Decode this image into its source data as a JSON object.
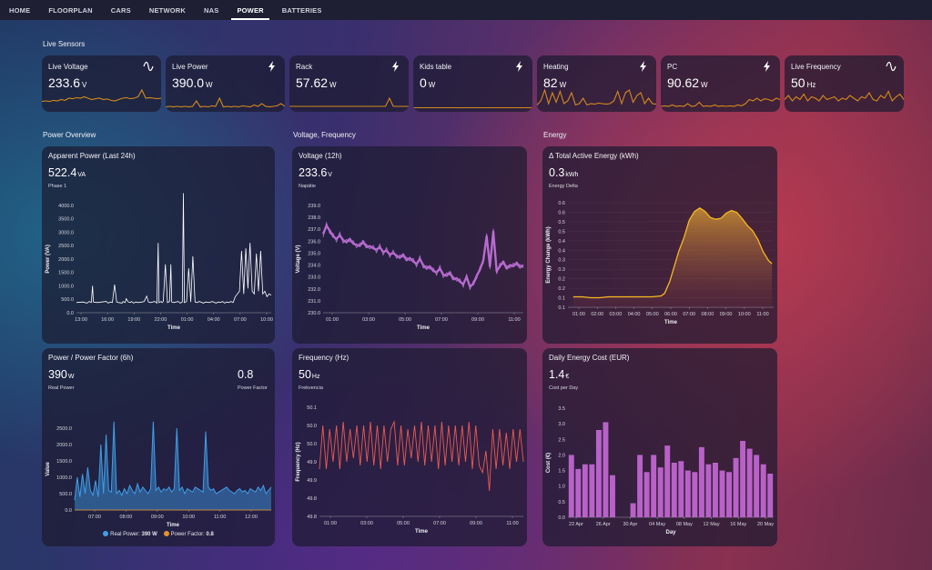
{
  "nav": {
    "tabs": [
      "HOME",
      "FLOORPLAN",
      "CARS",
      "NETWORK",
      "NAS",
      "POWER",
      "BATTERIES"
    ],
    "active": 5
  },
  "sections": {
    "live": "Live Sensors",
    "power": "Power Overview",
    "voltage": "Voltage, Frequency",
    "energy": "Energy"
  },
  "sensors": [
    {
      "name": "Live Voltage",
      "value": "233.6",
      "unit": "V",
      "icon": "sine-wave-icon"
    },
    {
      "name": "Live Power",
      "value": "390.0",
      "unit": "W",
      "icon": "lightning-bolt-icon"
    },
    {
      "name": "Rack",
      "value": "57.62",
      "unit": "W",
      "icon": "lightning-bolt-icon"
    },
    {
      "name": "Kids table",
      "value": "0",
      "unit": "W",
      "icon": "lightning-bolt-icon"
    },
    {
      "name": "Heating",
      "value": "82",
      "unit": "W",
      "icon": "lightning-bolt-icon"
    },
    {
      "name": "PC",
      "value": "90.62",
      "unit": "W",
      "icon": "lightning-bolt-icon"
    },
    {
      "name": "Live Frequency",
      "value": "50",
      "unit": "Hz",
      "icon": "sine-wave-icon"
    }
  ],
  "colors": {
    "spark": "#d4891c",
    "white_series": "#ffffff",
    "purple": "#c070d8",
    "red": "#ef5a50",
    "yellow": "#f5b820",
    "blue": "#3f9ee8",
    "bars": "#b862c8",
    "orange": "#e8902a"
  },
  "cards": {
    "apparent": {
      "title": "Apparent Power (Last 24h)",
      "value": "522.4",
      "unit": "VA",
      "sub": "Phase 1"
    },
    "voltage": {
      "title": "Voltage (12h)",
      "value": "233.6",
      "unit": "V",
      "sub": "Napätie"
    },
    "energy": {
      "title": "Δ Total Active Energy (kWh)",
      "value": "0.3",
      "unit": "kWh",
      "sub": "Energy Delta"
    },
    "pf": {
      "title": "Power / Power Factor (6h)",
      "value": "390",
      "unit": "W",
      "sub": "Real Power",
      "value2": "0.8",
      "sub2": "Power Factor",
      "legend": [
        {
          "label": "Real Power:",
          "value": "390 W"
        },
        {
          "label": "Power Factor:",
          "value": "0.8"
        }
      ]
    },
    "freq": {
      "title": "Frequency (Hz)",
      "value": "50",
      "unit": "Hz",
      "sub": "Frekvencia"
    },
    "cost": {
      "title": "Daily Energy Cost (EUR)",
      "value": "1.4",
      "unit": "€",
      "sub": "Cost per Day"
    }
  },
  "chart_data": [
    {
      "id": "apparent",
      "type": "line",
      "ylabel": "Power (VA)",
      "xlabel": "Time",
      "ylim": [
        0,
        4500
      ],
      "yticks": [
        "0.0",
        "500.0",
        "1000.0",
        "1500.0",
        "2000.0",
        "2500.0",
        "3000.0",
        "3500.0",
        "4000.0"
      ],
      "xticks": [
        "13:00",
        "16:00",
        "19:00",
        "22:00",
        "01:00",
        "04:00",
        "07:00",
        "10:00"
      ],
      "series": [
        {
          "x": [
            0,
            3,
            5,
            6,
            7,
            7.6,
            8,
            10,
            14,
            15,
            16,
            17,
            18,
            19,
            20,
            21.5,
            22,
            23,
            23.5,
            24.5,
            25.5,
            26,
            27,
            28,
            29,
            31,
            32,
            33.2,
            34,
            35,
            37,
            38,
            38.6,
            39,
            40,
            40.5,
            41,
            42,
            43,
            44,
            44.6,
            45,
            46,
            48,
            49,
            50,
            50.5,
            51,
            52,
            53,
            54,
            55,
            56,
            57,
            58,
            60,
            61,
            63,
            64,
            66,
            67,
            68,
            69,
            70,
            71,
            72,
            73,
            74,
            75,
            77,
            78,
            79,
            80,
            81,
            82,
            83,
            84,
            85,
            86,
            87,
            88,
            89,
            90,
            91,
            92
          ],
          "y": [
            380,
            400,
            360,
            420,
            380,
            1000,
            400,
            380,
            420,
            360,
            400,
            380,
            1050,
            400,
            380,
            360,
            420,
            380,
            520,
            400,
            380,
            420,
            360,
            400,
            380,
            400,
            420,
            620,
            400,
            380,
            420,
            360,
            2600,
            380,
            420,
            380,
            420,
            1800,
            380,
            420,
            1800,
            400,
            380,
            420,
            360,
            400,
            4450,
            380,
            420,
            1650,
            400,
            2100,
            400,
            380,
            420,
            360,
            400,
            380,
            420,
            360,
            400,
            380,
            420,
            360,
            400,
            380,
            420,
            380,
            600,
            800,
            2300,
            700,
            2400,
            900,
            2600,
            800,
            700,
            2200,
            800,
            2300,
            700,
            800,
            600,
            700,
            650
          ]
        }
      ]
    },
    {
      "id": "voltage",
      "type": "line",
      "ylabel": "Voltage (V)",
      "xlabel": "Time",
      "ylim": [
        230,
        239
      ],
      "yticks": [
        "230.0",
        "231.0",
        "232.0",
        "233.0",
        "234.0",
        "235.0",
        "236.0",
        "237.0",
        "238.0",
        "239.0"
      ],
      "xticks": [
        "01:00",
        "03:00",
        "05:00",
        "07:00",
        "09:00",
        "11:00"
      ],
      "series": [
        {
          "x": [
            0,
            1,
            2,
            3,
            4,
            5,
            6,
            7,
            8,
            9,
            10,
            11,
            12,
            13,
            14,
            15,
            16,
            17,
            18,
            19,
            20,
            21,
            22,
            23,
            24,
            25,
            26,
            27,
            28,
            29,
            30,
            31,
            32,
            33,
            34,
            35,
            36,
            37,
            38,
            39,
            40,
            41,
            42,
            43,
            44,
            45,
            46,
            47,
            48,
            49,
            50,
            51,
            52,
            53,
            54,
            55,
            56,
            57,
            58,
            59,
            60
          ],
          "y": [
            236.6,
            237.3,
            236.9,
            236.4,
            236.2,
            236.5,
            236.1,
            235.9,
            236.2,
            235.8,
            235.7,
            235.6,
            236.0,
            235.5,
            235.6,
            235.4,
            235.3,
            235.5,
            235.1,
            235.2,
            234.9,
            235.0,
            234.8,
            234.6,
            234.9,
            234.4,
            234.6,
            234.3,
            234.1,
            234.5,
            234.0,
            233.7,
            233.9,
            233.5,
            233.4,
            233.7,
            233.2,
            233.1,
            233.4,
            232.8,
            232.9,
            232.6,
            232.4,
            233.0,
            232.2,
            232.4,
            233.1,
            233.6,
            234.4,
            236.4,
            233.9,
            236.8,
            233.5,
            233.9,
            234.3,
            233.7,
            234.0,
            233.9,
            234.2,
            233.8,
            234.0
          ]
        }
      ]
    },
    {
      "id": "energy",
      "type": "area",
      "ylabel": "Energy Change (kWh)",
      "xlabel": "Time",
      "ylim": [
        0.05,
        0.65
      ],
      "yticks": [
        "0.1",
        "0.1",
        "0.2",
        "0.2",
        "0.3",
        "0.3",
        "0.4",
        "0.4",
        "0.5",
        "0.5",
        "0.6",
        "0.6"
      ],
      "xticks": [
        "01:00",
        "02:00",
        "03:00",
        "04:00",
        "05:00",
        "06:00",
        "07:00",
        "08:00",
        "09:00",
        "10:00",
        "11:00"
      ],
      "series": [
        {
          "x": [
            0,
            0.5,
            1,
            1.5,
            2,
            2.5,
            3,
            3.5,
            4,
            4.5,
            5,
            5.2,
            5.5,
            6,
            6.3,
            6.6,
            6.9,
            7.2,
            7.5,
            7.8,
            8.1,
            8.4,
            8.7,
            9,
            9.3,
            9.6,
            9.9,
            10.2,
            10.5,
            10.8,
            11.1,
            11.3
          ],
          "y": [
            0.11,
            0.11,
            0.105,
            0.105,
            0.11,
            0.11,
            0.11,
            0.11,
            0.11,
            0.11,
            0.115,
            0.13,
            0.2,
            0.37,
            0.45,
            0.55,
            0.6,
            0.62,
            0.6,
            0.565,
            0.555,
            0.56,
            0.59,
            0.605,
            0.595,
            0.56,
            0.52,
            0.49,
            0.44,
            0.37,
            0.32,
            0.3
          ]
        }
      ]
    },
    {
      "id": "pf",
      "type": "line",
      "ylabel": "Value",
      "xlabel": "Time",
      "ylim": [
        0,
        3000
      ],
      "yticks": [
        "0.0",
        "500.0",
        "1000.0",
        "1500.0",
        "2000.0",
        "2500.0"
      ],
      "xticks": [
        "07:00",
        "08:00",
        "09:00",
        "10:00",
        "11:00",
        "12:00"
      ],
      "series": [
        {
          "name": "Real Power",
          "x": [
            0,
            0.4,
            0.8,
            1.2,
            1.6,
            2.0,
            2.4,
            2.8,
            3.2,
            3.6,
            4.0,
            4.4,
            4.8,
            5.2,
            5.6,
            6.0,
            6.4,
            6.8,
            7.2,
            7.6,
            8.0,
            8.4,
            8.8,
            9.2,
            9.6,
            10.0,
            10.4,
            10.8,
            11.2,
            11.6,
            12.0,
            12.4,
            12.8,
            13.2,
            13.6,
            14.0,
            14.4,
            14.8,
            15.2,
            15.6,
            16.0,
            16.4,
            16.8,
            17.2,
            17.6,
            18.0,
            18.4,
            18.8,
            19.2,
            19.6,
            20.0,
            20.4,
            20.8,
            21.2,
            21.6,
            22.0,
            22.4,
            22.8,
            23.2,
            23.6,
            24.0,
            24.4,
            24.8,
            25.2,
            25.6,
            26.0,
            26.4,
            26.8,
            27.2,
            27.6,
            28.0,
            28.4,
            28.8,
            29.2,
            29.6,
            30.0
          ],
          "y": [
            300,
            1000,
            400,
            1100,
            500,
            1300,
            600,
            450,
            900,
            400,
            2000,
            500,
            2300,
            600,
            550,
            2700,
            500,
            600,
            450,
            650,
            500,
            750,
            600,
            500,
            800,
            550,
            700,
            600,
            500,
            650,
            2700,
            600,
            700,
            550,
            650,
            600,
            700,
            550,
            650,
            2500,
            600,
            700,
            500,
            650,
            600,
            550,
            700,
            650,
            600,
            550,
            2400,
            700,
            600,
            650,
            500,
            550,
            600,
            650,
            700,
            600,
            550,
            500,
            600,
            650,
            550,
            600,
            500,
            650,
            600,
            550,
            700,
            600,
            750,
            500,
            600,
            700
          ]
        },
        {
          "name": "Power Factor",
          "x": [
            0,
            30
          ],
          "y": [
            0.8,
            0.8
          ]
        }
      ]
    },
    {
      "id": "freq",
      "type": "line",
      "ylabel": "Frequency (Hz)",
      "xlabel": "Time",
      "ylim": [
        49.8,
        50.1
      ],
      "yticks": [
        "49.8",
        "49.8",
        "49.9",
        "49.9",
        "50.0",
        "50.0",
        "50.1"
      ],
      "xticks": [
        "01:00",
        "03:00",
        "05:00",
        "07:00",
        "09:00",
        "11:00"
      ],
      "series": [
        {
          "x": [
            0,
            1,
            2,
            3,
            4,
            5,
            6,
            7,
            8,
            9,
            10,
            11,
            12,
            13,
            14,
            15,
            16,
            17,
            18,
            19,
            20,
            21,
            22,
            23,
            24,
            25,
            26,
            27,
            28,
            29,
            30,
            31,
            32,
            33,
            34,
            35,
            36,
            37,
            38,
            39,
            40,
            41,
            42,
            43,
            44,
            45,
            46,
            47,
            48,
            49,
            50,
            51,
            52,
            53,
            54,
            55,
            56,
            57,
            58,
            59,
            60
          ],
          "y": [
            49.93,
            50.05,
            49.93,
            50.04,
            49.95,
            50.05,
            49.93,
            50.06,
            49.95,
            50.04,
            49.96,
            50.05,
            49.94,
            50.05,
            49.95,
            50.06,
            49.94,
            50.05,
            49.93,
            50.05,
            49.95,
            50.04,
            50.06,
            49.94,
            50.05,
            49.94,
            50.04,
            49.96,
            50.05,
            49.95,
            50.06,
            49.94,
            50.05,
            49.95,
            50.05,
            49.93,
            50.06,
            49.94,
            50.05,
            49.95,
            50.05,
            49.94,
            50.05,
            49.95,
            50.06,
            49.93,
            50.05,
            49.94,
            49.92,
            49.98,
            49.87,
            50.04,
            49.93,
            50.04,
            49.94,
            50.03,
            49.93,
            50.04,
            49.95,
            50.04,
            49.95
          ]
        }
      ]
    },
    {
      "id": "cost",
      "type": "bar",
      "ylabel": "Cost (€)",
      "xlabel": "Day",
      "ylim": [
        0,
        3.5
      ],
      "yticks": [
        "0.0",
        "0.5",
        "1.0",
        "1.5",
        "2.0",
        "2.5",
        "3.0",
        "3.5"
      ],
      "xticks": [
        "22 Apr",
        "26 Apr",
        "30 Apr",
        "04 May",
        "08 May",
        "12 May",
        "16 May",
        "20 May"
      ],
      "values": [
        2.0,
        1.55,
        1.7,
        1.7,
        2.8,
        3.05,
        1.35,
        0,
        0,
        0.45,
        2.0,
        1.45,
        2.0,
        1.6,
        2.3,
        1.75,
        1.8,
        1.5,
        1.45,
        2.25,
        1.7,
        1.75,
        1.5,
        1.45,
        1.9,
        2.45,
        2.2,
        2.0,
        1.7,
        1.4
      ]
    }
  ]
}
